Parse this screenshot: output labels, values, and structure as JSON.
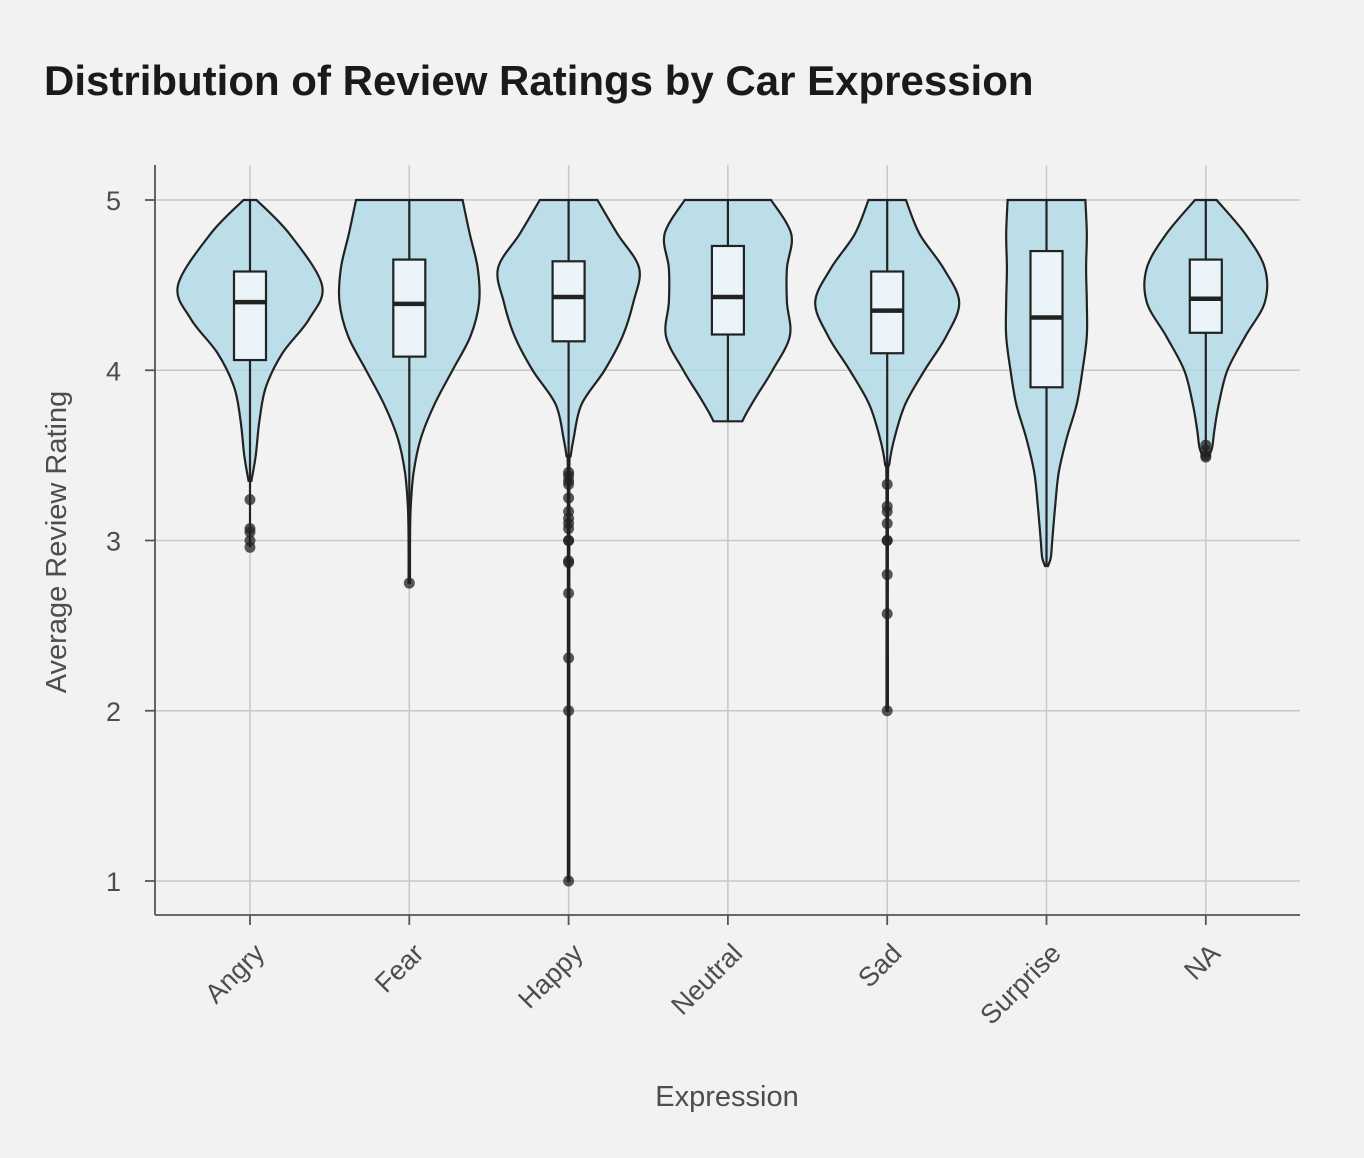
{
  "chart_data": {
    "type": "violin",
    "title": "Distribution of Review Ratings by Car Expression",
    "xlabel": "Expression",
    "ylabel": "Average Review Rating",
    "ylim": [
      0.8,
      5.2
    ],
    "yticks": [
      "1",
      "2",
      "3",
      "4",
      "5"
    ],
    "grid": true,
    "categories": [
      "Angry",
      "Fear",
      "Happy",
      "Neutral",
      "Sad",
      "Surprise",
      "NA"
    ],
    "series": [
      {
        "category": "Angry",
        "box": {
          "q1": 4.06,
          "median": 4.4,
          "q3": 4.58,
          "whisker_low": 3.3,
          "whisker_high": 5.0
        },
        "outliers": [
          3.24,
          3.07,
          3.05,
          3.0,
          2.96
        ],
        "violin_profile": [
          [
            5.0,
            0.09
          ],
          [
            4.8,
            0.55
          ],
          [
            4.5,
            1.0
          ],
          [
            4.3,
            0.82
          ],
          [
            4.1,
            0.45
          ],
          [
            3.9,
            0.22
          ],
          [
            3.7,
            0.13
          ],
          [
            3.5,
            0.08
          ],
          [
            3.35,
            0.02
          ]
        ]
      },
      {
        "category": "Fear",
        "box": {
          "q1": 4.08,
          "median": 4.39,
          "q3": 4.65,
          "whisker_low": 3.3,
          "whisker_high": 5.0
        },
        "outliers": [
          2.75
        ],
        "violin_profile": [
          [
            5.0,
            0.74
          ],
          [
            4.8,
            0.84
          ],
          [
            4.6,
            0.95
          ],
          [
            4.4,
            0.97
          ],
          [
            4.2,
            0.85
          ],
          [
            4.0,
            0.6
          ],
          [
            3.8,
            0.35
          ],
          [
            3.6,
            0.16
          ],
          [
            3.4,
            0.06
          ],
          [
            3.2,
            0.02
          ],
          [
            3.0,
            0.01
          ],
          [
            2.75,
            0.01
          ]
        ]
      },
      {
        "category": "Happy",
        "box": {
          "q1": 4.17,
          "median": 4.43,
          "q3": 4.64,
          "whisker_low": 3.4,
          "whisker_high": 5.0
        },
        "outliers": [
          3.4,
          3.38,
          3.35,
          3.33,
          3.25,
          3.17,
          3.13,
          3.1,
          3.07,
          3.0,
          3.0,
          2.88,
          2.87,
          2.69,
          2.31,
          2.0,
          1.0
        ],
        "violin_profile": [
          [
            5.0,
            0.4
          ],
          [
            4.8,
            0.68
          ],
          [
            4.6,
            0.98
          ],
          [
            4.4,
            0.9
          ],
          [
            4.2,
            0.75
          ],
          [
            4.0,
            0.5
          ],
          [
            3.8,
            0.18
          ],
          [
            3.6,
            0.07
          ],
          [
            3.5,
            0.03
          ],
          [
            3.4,
            0.01
          ],
          [
            2.5,
            0.01
          ],
          [
            1.0,
            0.01
          ]
        ]
      },
      {
        "category": "Neutral",
        "box": {
          "q1": 4.21,
          "median": 4.43,
          "q3": 4.73,
          "whisker_low": 3.7,
          "whisker_high": 5.0
        },
        "outliers": [],
        "violin_profile": [
          [
            5.0,
            0.6
          ],
          [
            4.8,
            0.88
          ],
          [
            4.6,
            0.82
          ],
          [
            4.4,
            0.82
          ],
          [
            4.2,
            0.86
          ],
          [
            4.0,
            0.62
          ],
          [
            3.85,
            0.4
          ],
          [
            3.75,
            0.26
          ],
          [
            3.7,
            0.2
          ]
        ]
      },
      {
        "category": "Sad",
        "box": {
          "q1": 4.1,
          "median": 4.35,
          "q3": 4.58,
          "whisker_low": 3.5,
          "whisker_high": 5.0
        },
        "outliers": [
          3.33,
          3.2,
          3.17,
          3.1,
          3.0,
          3.0,
          2.8,
          2.57,
          2.0
        ],
        "violin_profile": [
          [
            5.0,
            0.26
          ],
          [
            4.8,
            0.45
          ],
          [
            4.6,
            0.78
          ],
          [
            4.4,
            1.0
          ],
          [
            4.2,
            0.82
          ],
          [
            4.0,
            0.52
          ],
          [
            3.8,
            0.25
          ],
          [
            3.6,
            0.1
          ],
          [
            3.45,
            0.03
          ],
          [
            3.3,
            0.01
          ],
          [
            2.0,
            0.01
          ]
        ]
      },
      {
        "category": "Surprise",
        "box": {
          "q1": 3.9,
          "median": 4.31,
          "q3": 4.7,
          "whisker_low": 2.85,
          "whisker_high": 5.0
        },
        "outliers": [],
        "violin_profile": [
          [
            5.0,
            0.54
          ],
          [
            4.8,
            0.56
          ],
          [
            4.6,
            0.55
          ],
          [
            4.4,
            0.56
          ],
          [
            4.2,
            0.56
          ],
          [
            4.0,
            0.5
          ],
          [
            3.8,
            0.42
          ],
          [
            3.6,
            0.28
          ],
          [
            3.4,
            0.17
          ],
          [
            3.2,
            0.12
          ],
          [
            3.0,
            0.08
          ],
          [
            2.9,
            0.06
          ],
          [
            2.85,
            0.02
          ]
        ]
      },
      {
        "category": "NA",
        "box": {
          "q1": 4.22,
          "median": 4.42,
          "q3": 4.65,
          "whisker_low": 3.75,
          "whisker_high": 5.0
        },
        "outliers": [
          3.56,
          3.53,
          3.5,
          3.49
        ],
        "violin_profile": [
          [
            5.0,
            0.15
          ],
          [
            4.8,
            0.55
          ],
          [
            4.6,
            0.82
          ],
          [
            4.4,
            0.82
          ],
          [
            4.2,
            0.55
          ],
          [
            4.0,
            0.3
          ],
          [
            3.8,
            0.18
          ],
          [
            3.65,
            0.12
          ],
          [
            3.55,
            0.09
          ],
          [
            3.5,
            0.05
          ]
        ]
      }
    ]
  }
}
